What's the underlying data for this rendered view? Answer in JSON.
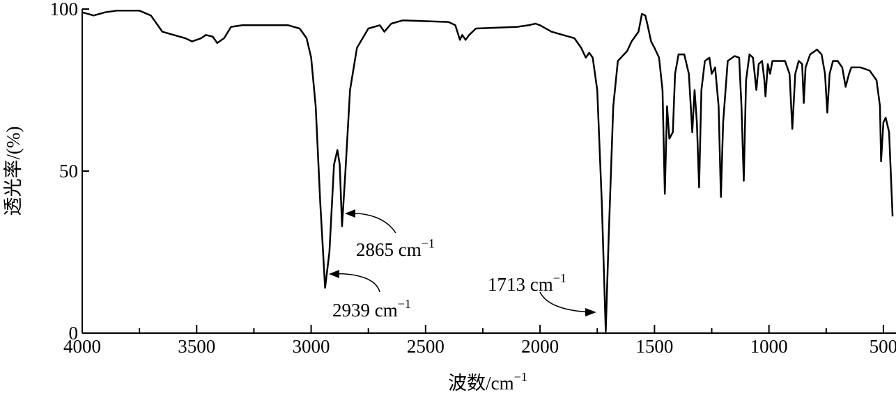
{
  "chart_data": {
    "type": "line",
    "xlabel": {
      "text": "波数/cm",
      "sup": "−1"
    },
    "ylabel": "透光率/(%)",
    "color": "#000000",
    "xlim": [
      4000,
      445
    ],
    "ylim": [
      0,
      100
    ],
    "xticks": [
      4000,
      3500,
      3000,
      2500,
      2000,
      1500,
      1000,
      500
    ],
    "xminor_ticks": [
      3750,
      3250,
      2750,
      2250,
      1750,
      1250,
      750
    ],
    "yticks": [
      0,
      50,
      100
    ],
    "annotations": [
      {
        "text": "2865 cm",
        "sup": "−1",
        "x": 2865,
        "y": 33
      },
      {
        "text": "2939 cm",
        "sup": "−1",
        "x": 2939,
        "y": 14
      },
      {
        "text": "1713 cm",
        "sup": "−1",
        "x": 1713,
        "y": 0.5
      }
    ],
    "x": [
      4000,
      3950,
      3900,
      3850,
      3750,
      3700,
      3650,
      3600,
      3550,
      3520,
      3480,
      3460,
      3430,
      3410,
      3380,
      3350,
      3300,
      3100,
      3050,
      3020,
      3000,
      2980,
      2960,
      2939,
      2920,
      2900,
      2885,
      2875,
      2865,
      2850,
      2830,
      2800,
      2750,
      2700,
      2680,
      2650,
      2600,
      2400,
      2370,
      2350,
      2340,
      2325,
      2310,
      2280,
      2100,
      2050,
      2020,
      2000,
      1950,
      1900,
      1850,
      1820,
      1800,
      1785,
      1770,
      1750,
      1730,
      1713,
      1700,
      1680,
      1660,
      1640,
      1620,
      1600,
      1570,
      1555,
      1540,
      1530,
      1515,
      1500,
      1480,
      1465,
      1455,
      1445,
      1435,
      1420,
      1410,
      1395,
      1370,
      1350,
      1335,
      1325,
      1315,
      1305,
      1295,
      1280,
      1260,
      1250,
      1235,
      1220,
      1210,
      1200,
      1180,
      1150,
      1130,
      1120,
      1110,
      1100,
      1085,
      1070,
      1055,
      1045,
      1030,
      1020,
      1015,
      1005,
      995,
      985,
      950,
      930,
      910,
      898,
      885,
      870,
      855,
      848,
      840,
      820,
      790,
      770,
      755,
      745,
      735,
      720,
      700,
      680,
      665,
      650,
      640,
      600,
      560,
      530,
      515,
      510,
      500,
      490,
      475,
      460
    ],
    "values": [
      99,
      98,
      99,
      99.5,
      99.5,
      98,
      93,
      92,
      91,
      90,
      91,
      92,
      91.5,
      89.5,
      91,
      94.5,
      95,
      95,
      94,
      91,
      85,
      70,
      40,
      14,
      25,
      52,
      56.5,
      52,
      33,
      50,
      75,
      88,
      94,
      95,
      93,
      95.5,
      96.5,
      96,
      95,
      90.5,
      92,
      90.5,
      92,
      94,
      94.5,
      95,
      95.5,
      95,
      93,
      92,
      91,
      88,
      85,
      86.5,
      85,
      75,
      40,
      0.5,
      30,
      70,
      84,
      85.5,
      87,
      90,
      93,
      98.5,
      98,
      95,
      90,
      88,
      85,
      75,
      43,
      70,
      60,
      62,
      80,
      86,
      86,
      80,
      62,
      75,
      65,
      45,
      75,
      84,
      85,
      80,
      82,
      70,
      42,
      65,
      84,
      85.5,
      85,
      70,
      47,
      78,
      86,
      85,
      75,
      83,
      84,
      78,
      73,
      83,
      80,
      84,
      84,
      84,
      80,
      63,
      80,
      84,
      83,
      71,
      82,
      86,
      87.5,
      86,
      80,
      68,
      80,
      84,
      84,
      82,
      76,
      80,
      82,
      82,
      81,
      78,
      70,
      53,
      65,
      66.5,
      62,
      36
    ]
  }
}
